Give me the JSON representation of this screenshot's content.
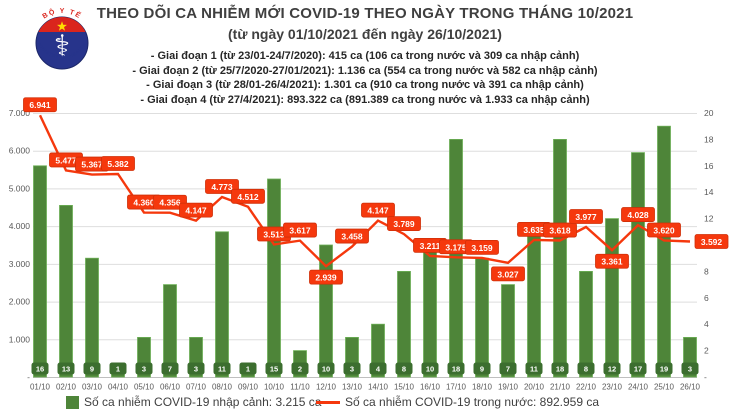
{
  "header": {
    "title": "THEO DÕI CA NHIỄM MỚI COVID-19 THEO NGÀY TRONG THÁNG 10/2021",
    "subtitle": "(từ ngày 01/10/2021 đến ngày 26/10/2021)",
    "stages": [
      "- Giai đoạn 1 (từ 23/01-24/7/2020): 415 ca (106 ca trong nước và 309 ca nhập cảnh)",
      "- Giai đoạn 2 (từ 25/7/2020-27/01/2021): 1.136 ca (554 ca trong nước và 582 ca nhập cảnh)",
      "- Giai đoạn 3 (từ 28/01-26/4/2021): 1.301 ca (910 ca trong nước và 391 ca nhập cảnh)",
      "- Giai đoạn 4 (từ 27/4/2021): 893.322 ca (891.389 ca trong nước và 1.933 ca nhập cảnh)"
    ]
  },
  "logo": {
    "top": "BỘ Y TẾ",
    "bottom": "MINISTRY OF HEALTH",
    "staff_glyph": "⚕",
    "colors": {
      "navy": "#27348b",
      "red": "#da251d",
      "star": "#ffde00"
    }
  },
  "chart_data": {
    "type": "bar+line combo",
    "categories": [
      "01/10",
      "02/10",
      "03/10",
      "04/10",
      "05/10",
      "06/10",
      "07/10",
      "08/10",
      "09/10",
      "10/10",
      "11/10",
      "12/10",
      "13/10",
      "14/10",
      "15/10",
      "16/10",
      "17/10",
      "18/10",
      "19/10",
      "20/10",
      "21/10",
      "22/10",
      "23/10",
      "24/10",
      "25/10",
      "26/10"
    ],
    "series": [
      {
        "name": "Số ca nhiễm COVID-19 nhập cảnh",
        "type": "bar",
        "axis": "right",
        "color": "#4e8539",
        "border_color": "#6db057",
        "badge_color": "#3c6e2f",
        "values": [
          16,
          13,
          9,
          1,
          3,
          7,
          3,
          11,
          1,
          15,
          2,
          10,
          3,
          4,
          8,
          10,
          18,
          9,
          7,
          11,
          18,
          8,
          12,
          17,
          19,
          3
        ]
      },
      {
        "name": "Số ca nhiễm COVID-19 trong nước",
        "type": "line",
        "axis": "left",
        "color": "#f5380d",
        "label_border_color": "#cf2f08",
        "values": [
          6941,
          5477,
          5367,
          5382,
          4360,
          4356,
          4147,
          4773,
          4512,
          3513,
          3617,
          2939,
          3458,
          4147,
          3789,
          3211,
          3175,
          3159,
          3027,
          3635,
          3618,
          3977,
          3361,
          4028,
          3620,
          3592
        ],
        "labels": [
          "6.941",
          "5.477",
          "5.367",
          "5.382",
          "4.360",
          "4.356",
          "4.147",
          "4.773",
          "4.512",
          "3.513",
          "3.617",
          "2.939",
          "3.458",
          "4.147",
          "3.789",
          "3.211",
          "3.175",
          "3.159",
          "3.027",
          "3.635",
          "3.618",
          "3.977",
          "3.361",
          "4.028",
          "3.620",
          "3.592"
        ],
        "label_overrides": {
          "11": "below",
          "18": "below",
          "22": "below",
          "25": "right"
        }
      }
    ],
    "left_axis": {
      "max": 7000,
      "step": 1000,
      "tick_labels": [
        "7.000",
        "6.000",
        "5.000",
        "4.000",
        "3.000",
        "2.000",
        "1.000",
        "-"
      ]
    },
    "right_axis": {
      "max": 20,
      "step": 2,
      "tick_labels": [
        "20",
        "18",
        "16",
        "14",
        "12",
        "10",
        "8",
        "6",
        "4",
        "2",
        "-"
      ]
    },
    "grid": "horizontal",
    "title": "THEO DÕI CA NHIỄM MỚI COVID-19 THEO NGÀY TRONG THÁNG 10/2021",
    "xlabel": "",
    "ylabel": ""
  },
  "legend": {
    "items": [
      {
        "label": "Số ca nhiễm COVID-19 nhập cảnh: 3.215 ca",
        "swatch": "bar",
        "color": "#4e8539"
      },
      {
        "label": "Số ca nhiễm COVID-19 trong nước: 892.959 ca",
        "swatch": "line",
        "color": "#f5380d"
      }
    ]
  }
}
